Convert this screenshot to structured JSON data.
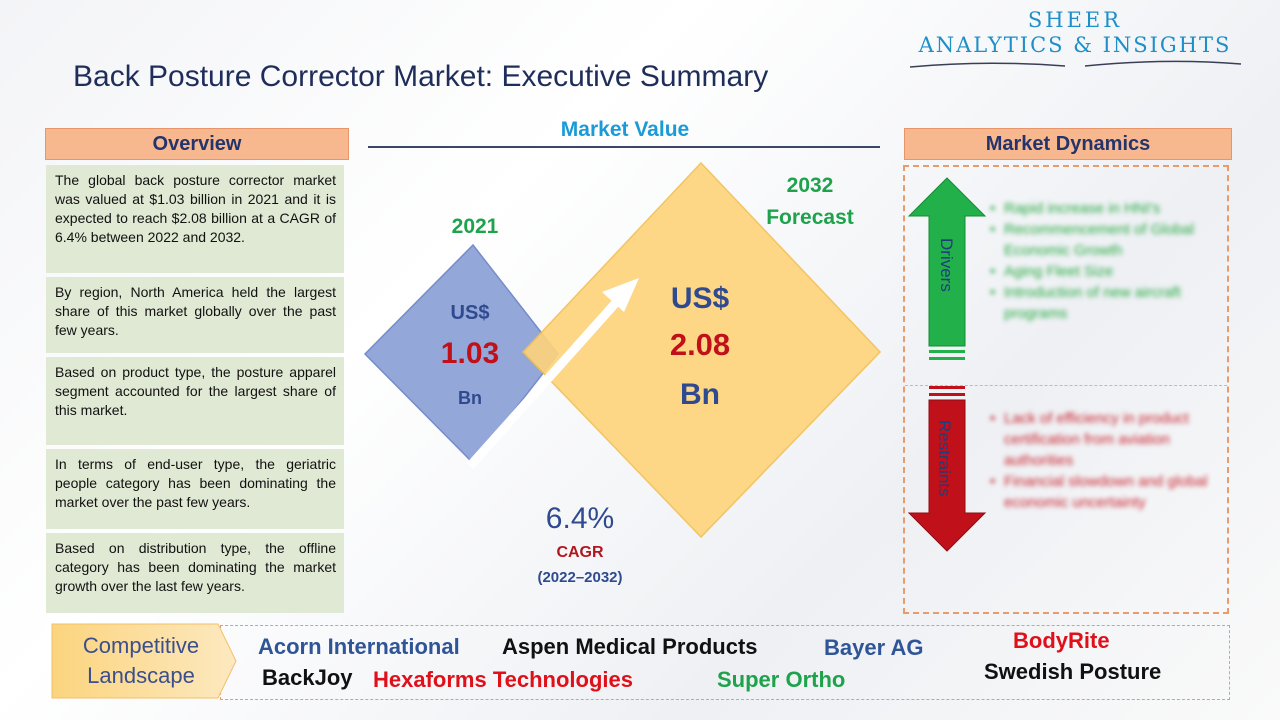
{
  "logo": {
    "line1": "SHEER",
    "line2": "ANALYTICS & INSIGHTS"
  },
  "title": "Back Posture Corrector Market: Executive Summary",
  "overview": {
    "heading": "Overview",
    "paragraphs": [
      "The global back posture corrector market was valued at $1.03 billion in 2021 and it is expected to reach $2.08 billion at a CAGR of 6.4% between 2022 and 2032.",
      "By region, North America held the largest share of this market globally over the past few years.",
      "Based on product type, the posture apparel segment accounted for the largest share of this market.",
      "In terms of end-user type, the geriatric people category has been dominating the market over the past few years.",
      "Based on distribution type, the offline category has been dominating the market growth over the last few years."
    ]
  },
  "market_value": {
    "heading": "Market Value",
    "year_2021": "2021",
    "year_2032_line1": "2032",
    "year_2032_line2": "Forecast",
    "value_2021": {
      "currency": "US$",
      "amount": "1.03",
      "unit": "Bn"
    },
    "value_2032": {
      "currency": "US$",
      "amount": "2.08",
      "unit": "Bn"
    },
    "cagr": {
      "value": "6.4%",
      "label": "CAGR",
      "range": "(2022–2032)"
    }
  },
  "dynamics": {
    "heading": "Market Dynamics",
    "drivers_label": "Drivers",
    "restraints_label": "Restraints",
    "drivers": [
      "Rapid increase in HNI's",
      "Recommencement of Global Economic Growth",
      "Aging Fleet Size",
      "Introduction of new aircraft programs"
    ],
    "restraints": [
      "Lack of efficiency in product certification from aviation authorities",
      "Financial slowdown and global economic uncertainty"
    ]
  },
  "competitive": {
    "label_line1": "Competitive",
    "label_line2": "Landscape",
    "companies": [
      {
        "name": "Acorn International",
        "color": "#2f5597"
      },
      {
        "name": "Aspen Medical Products",
        "color": "#111111"
      },
      {
        "name": "Bayer AG",
        "color": "#2f5597"
      },
      {
        "name": "BodyRite",
        "color": "#e0101a"
      },
      {
        "name": "BackJoy",
        "color": "#111111"
      },
      {
        "name": "Hexaforms Technologies",
        "color": "#e0101a"
      },
      {
        "name": "Super Ortho",
        "color": "#1ea34c"
      },
      {
        "name": "Swedish Posture",
        "color": "#111111"
      }
    ]
  },
  "colors": {
    "header_fill": "#f8b88f",
    "overview_fill": "#dfe9d3",
    "diamond_2021": "#8fa3d8",
    "diamond_2032": "#ffd47a",
    "drivers_arrow": "#22b04b",
    "restraints_arrow": "#c0111a"
  }
}
